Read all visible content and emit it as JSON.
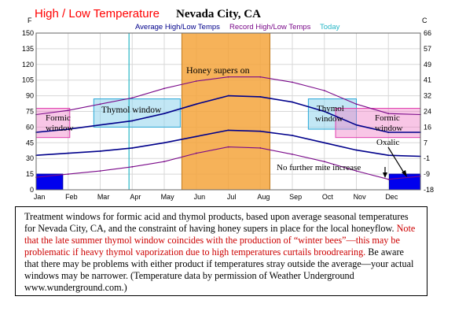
{
  "chart_data": {
    "type": "line",
    "title": "High / Low Temperature",
    "location": "Nevada City, CA",
    "left_unit": "F",
    "right_unit": "C",
    "legend": [
      "Average High/Low Temps",
      "Record High/Low Temps",
      "Today"
    ],
    "colors": {
      "title": "#ff0000",
      "average": "#00008b",
      "record": "#7a0a8a",
      "today": "#26b6c6",
      "honey": "#f4a53c",
      "formic": "#f080c8",
      "thymol": "#8fd3ec",
      "oxalic": "#0000ee"
    },
    "left_ticks": [
      150,
      135,
      120,
      105,
      90,
      75,
      60,
      45,
      30,
      15,
      0
    ],
    "right_ticks": [
      66,
      57,
      49,
      41,
      32,
      24,
      16,
      7,
      -1,
      -9,
      -18
    ],
    "ylim": [
      0,
      150
    ],
    "months": [
      "Jan",
      "Feb",
      "Mar",
      "Apr",
      "May",
      "Jun",
      "Jul",
      "Aug",
      "Sep",
      "Oct",
      "Nov",
      "Dec"
    ],
    "today_month": 2.9,
    "series": [
      {
        "name": "Average High",
        "x": [
          0,
          1,
          2,
          3,
          4,
          5,
          6,
          7,
          8,
          9,
          10,
          11,
          12
        ],
        "y": [
          55,
          58,
          62,
          66,
          73,
          82,
          90,
          89,
          84,
          75,
          62,
          55,
          55
        ]
      },
      {
        "name": "Average Low",
        "x": [
          0,
          1,
          2,
          3,
          4,
          5,
          6,
          7,
          8,
          9,
          10,
          11,
          12
        ],
        "y": [
          33,
          35,
          37,
          40,
          45,
          51,
          57,
          56,
          52,
          45,
          38,
          33,
          32
        ]
      },
      {
        "name": "Record High",
        "x": [
          0,
          1,
          2,
          3,
          4,
          5,
          6,
          7,
          8,
          9,
          10,
          11,
          12
        ],
        "y": [
          72,
          76,
          82,
          88,
          97,
          104,
          108,
          108,
          103,
          95,
          82,
          73,
          72
        ]
      },
      {
        "name": "Record Low",
        "x": [
          0,
          1,
          2,
          3,
          4,
          5,
          6,
          7,
          8,
          9,
          10,
          11,
          12
        ],
        "y": [
          12,
          15,
          18,
          22,
          27,
          35,
          41,
          40,
          34,
          27,
          18,
          10,
          13
        ]
      }
    ],
    "windows": [
      {
        "label": "Formic window",
        "kind": "formic",
        "x0": 0,
        "x1": 1.05,
        "y0": 50,
        "y1": 78
      },
      {
        "label": "Thymol window",
        "kind": "thymol",
        "x0": 1.8,
        "x1": 4.5,
        "y0": 60,
        "y1": 87
      },
      {
        "label": "Honey supers on",
        "kind": "honey",
        "x0": 4.55,
        "x1": 7.3,
        "y0": 0,
        "y1": 150
      },
      {
        "label": "Thymol window",
        "kind": "thymol",
        "x0": 8.5,
        "x1": 10.0,
        "y0": 58,
        "y1": 87
      },
      {
        "label": "Formic window",
        "kind": "formic",
        "x0": 9.35,
        "x1": 12.0,
        "y0": 50,
        "y1": 78
      },
      {
        "label": "",
        "kind": "oxalic",
        "x0": 0.0,
        "x1": 0.83,
        "y0": 0,
        "y1": 15
      },
      {
        "label": "",
        "kind": "oxalic",
        "x0": 11.03,
        "x1": 12.0,
        "y0": 0,
        "y1": 15
      }
    ],
    "annotations": [
      "Oxalic",
      "No further mite increase"
    ]
  },
  "caption": {
    "part1": "Treatment windows for formic acid and thymol products, based upon average seasonal temperatures for Nevada City, CA, and the constraint of having honey supers in place for the local honeyflow.",
    "part2": "Note that the late summer thymol window coincides with the production of “winter bees”—this may be problematic if heavy thymol vaporization due to high temperatures curtails broodrearing.",
    "part3": "Be aware that there may be problems with either product if temperatures stray outside the average—your actual windows may be narrower. (Temperature data by permission of Weather Underground www.wunderground.com.)"
  }
}
